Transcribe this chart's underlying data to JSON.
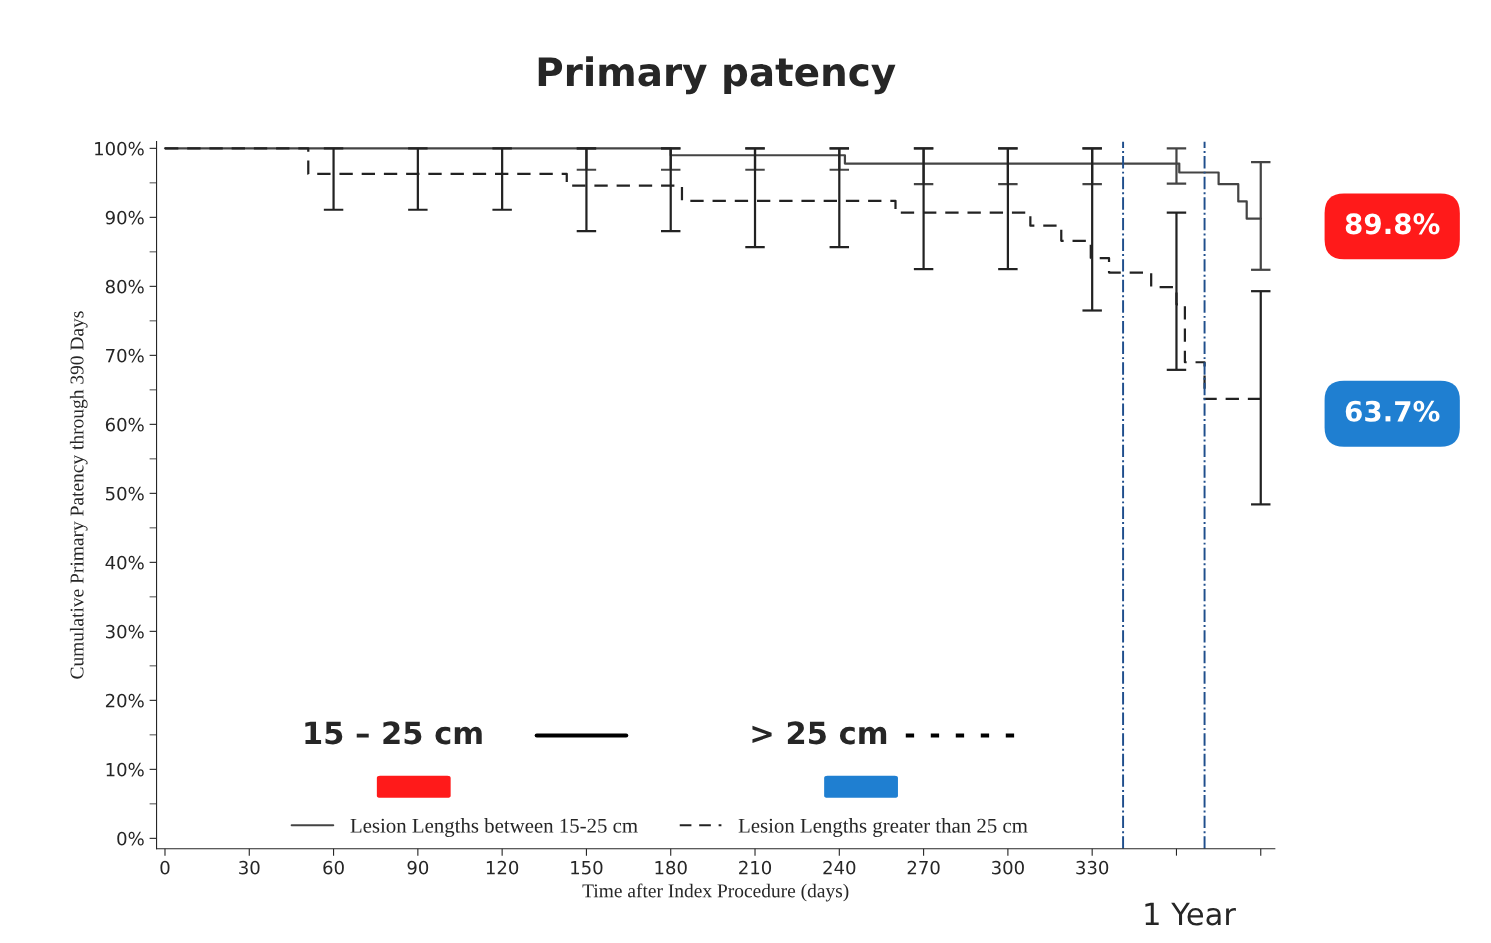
{
  "chart_data": {
    "type": "step",
    "title": "Primary patency",
    "xlabel": "Time after Index Procedure (days)",
    "ylabel": "Cumulative Primary Patency through 390 Days",
    "xlim": [
      -3,
      395
    ],
    "ylim": [
      -1.5,
      101
    ],
    "xticks": [
      0,
      30,
      60,
      90,
      120,
      150,
      180,
      210,
      240,
      270,
      300,
      330,
      {
        "value": 360,
        "label": null
      },
      {
        "value": 390,
        "label": null
      }
    ],
    "yticks": [
      {
        "value": 0,
        "label": "0%"
      },
      {
        "value": 10,
        "label": "10%"
      },
      {
        "value": 20,
        "label": "20%"
      },
      {
        "value": 30,
        "label": "30%"
      },
      {
        "value": 40,
        "label": "40%"
      },
      {
        "value": 50,
        "label": "50%"
      },
      {
        "value": 60,
        "label": "60%"
      },
      {
        "value": 70,
        "label": "70%"
      },
      {
        "value": 80,
        "label": "80%"
      },
      {
        "value": 90,
        "label": "90%"
      },
      {
        "value": 100,
        "label": "100%"
      }
    ],
    "legend": "bottom",
    "grid": false,
    "series": [
      {
        "name": "Lesion Lengths between 15-25 cm",
        "color": "#444444",
        "line_style": "solid",
        "x": [
          0,
          150,
          180,
          210,
          240,
          242,
          270,
          300,
          330,
          360,
          361,
          375,
          382,
          385,
          390
        ],
        "values": [
          100,
          100,
          99,
          99,
          99,
          97.8,
          97.8,
          97.8,
          97.8,
          97.8,
          96.5,
          94.8,
          92.3,
          89.8,
          89.8
        ],
        "errors": [
          null,
          [
            96.9,
            100
          ],
          [
            96.9,
            100
          ],
          [
            96.9,
            100
          ],
          [
            96.9,
            100
          ],
          null,
          [
            94.8,
            100
          ],
          [
            94.8,
            100
          ],
          [
            94.8,
            100
          ],
          [
            94.9,
            100
          ],
          null,
          null,
          null,
          null,
          [
            82.4,
            98.0
          ]
        ]
      },
      {
        "name": "Lesion Lengths greater than 25 cm",
        "color": "#222222",
        "line_style": "dashed",
        "x": [
          0,
          51,
          60,
          90,
          120,
          143,
          150,
          180,
          184,
          210,
          240,
          260,
          270,
          300,
          308,
          319,
          329.5,
          330,
          336,
          351,
          360,
          363,
          370,
          390
        ],
        "values": [
          100,
          96.3,
          96.3,
          96.3,
          96.3,
          94.6,
          94.6,
          94.6,
          92.4,
          92.4,
          92.4,
          90.7,
          90.7,
          90.7,
          88.8,
          86.6,
          84.1,
          84.1,
          82.0,
          79.9,
          77.4,
          69.0,
          63.7,
          63.7
        ],
        "errors": [
          null,
          null,
          [
            91.1,
            100
          ],
          [
            91.1,
            100
          ],
          [
            91.1,
            100
          ],
          null,
          [
            88.0,
            100
          ],
          [
            88.0,
            100
          ],
          null,
          [
            85.7,
            100
          ],
          [
            85.7,
            100
          ],
          null,
          [
            82.5,
            100
          ],
          [
            82.5,
            100
          ],
          null,
          null,
          null,
          [
            76.5,
            100
          ],
          null,
          null,
          [
            67.9,
            90.7
          ],
          null,
          null,
          [
            48.4,
            79.3
          ]
        ]
      }
    ],
    "ref_lines": [
      {
        "axis": "x",
        "value": 341,
        "color": "#1f4e8c",
        "line_style": "dashdot"
      },
      {
        "axis": "x",
        "value": 370,
        "color": "#1f4e8c",
        "line_style": "dashdot",
        "label": "1 Year"
      }
    ],
    "annotations": [
      "15 – 25 cm",
      "> 25 cm",
      "89.8%",
      "63.7%"
    ]
  }
}
